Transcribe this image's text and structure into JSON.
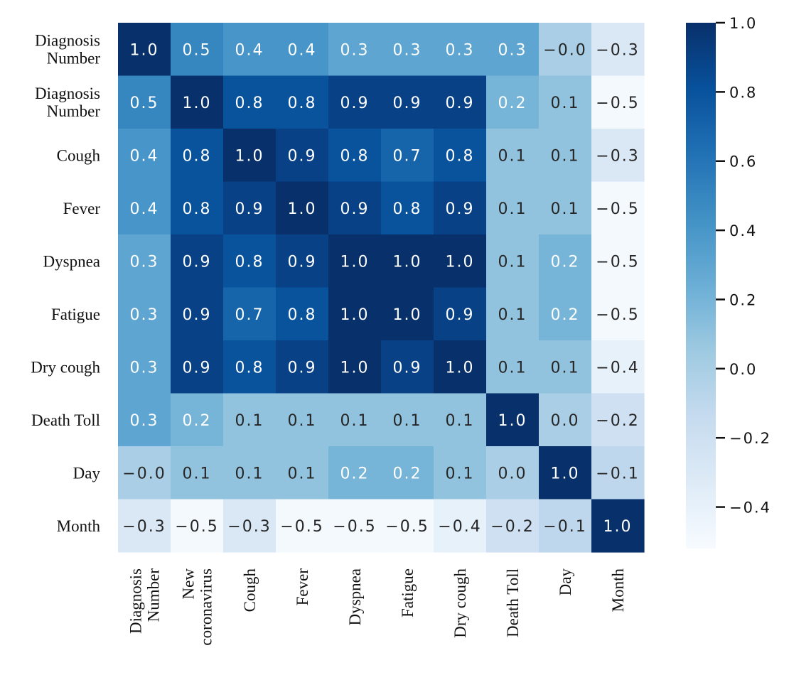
{
  "chart_data": {
    "type": "heatmap",
    "title": "",
    "row_labels": [
      [
        "Diagnosis",
        "Number"
      ],
      [
        "Diagnosis",
        "Number"
      ],
      [
        "Cough"
      ],
      [
        "Fever"
      ],
      [
        "Dyspnea"
      ],
      [
        "Fatigue"
      ],
      [
        "Dry cough"
      ],
      [
        "Death Toll"
      ],
      [
        "Day"
      ],
      [
        "Month"
      ]
    ],
    "col_labels": [
      [
        "Diagnosis",
        "Number"
      ],
      [
        "New",
        "coronavirus"
      ],
      [
        "Cough"
      ],
      [
        "Fever"
      ],
      [
        "Dyspnea"
      ],
      [
        "Fatigue"
      ],
      [
        "Dry cough"
      ],
      [
        "Death Toll"
      ],
      [
        "Day"
      ],
      [
        "Month"
      ]
    ],
    "values": [
      [
        1.0,
        0.5,
        0.4,
        0.4,
        0.3,
        0.3,
        0.3,
        0.3,
        -0.0,
        -0.3
      ],
      [
        0.5,
        1.0,
        0.8,
        0.8,
        0.9,
        0.9,
        0.9,
        0.2,
        0.1,
        -0.5
      ],
      [
        0.4,
        0.8,
        1.0,
        0.9,
        0.8,
        0.7,
        0.8,
        0.1,
        0.1,
        -0.3
      ],
      [
        0.4,
        0.8,
        0.9,
        1.0,
        0.9,
        0.8,
        0.9,
        0.1,
        0.1,
        -0.5
      ],
      [
        0.3,
        0.9,
        0.8,
        0.9,
        1.0,
        1.0,
        1.0,
        0.1,
        0.2,
        -0.5
      ],
      [
        0.3,
        0.9,
        0.7,
        0.8,
        1.0,
        1.0,
        0.9,
        0.1,
        0.2,
        -0.5
      ],
      [
        0.3,
        0.9,
        0.8,
        0.9,
        1.0,
        0.9,
        1.0,
        0.1,
        0.1,
        -0.4
      ],
      [
        0.3,
        0.2,
        0.1,
        0.1,
        0.1,
        0.1,
        0.1,
        1.0,
        0.0,
        -0.2
      ],
      [
        -0.0,
        0.1,
        0.1,
        0.1,
        0.2,
        0.2,
        0.1,
        0.0,
        1.0,
        -0.1
      ],
      [
        -0.3,
        -0.5,
        -0.3,
        -0.5,
        -0.5,
        -0.5,
        -0.4,
        -0.2,
        -0.1,
        1.0
      ]
    ],
    "display_values": [
      [
        "1.0",
        "0.5",
        "0.4",
        "0.4",
        "0.3",
        "0.3",
        "0.3",
        "0.3",
        "−0.0",
        "−0.3"
      ],
      [
        "0.5",
        "1.0",
        "0.8",
        "0.8",
        "0.9",
        "0.9",
        "0.9",
        "0.2",
        "0.1",
        "−0.5"
      ],
      [
        "0.4",
        "0.8",
        "1.0",
        "0.9",
        "0.8",
        "0.7",
        "0.8",
        "0.1",
        "0.1",
        "−0.3"
      ],
      [
        "0.4",
        "0.8",
        "0.9",
        "1.0",
        "0.9",
        "0.8",
        "0.9",
        "0.1",
        "0.1",
        "−0.5"
      ],
      [
        "0.3",
        "0.9",
        "0.8",
        "0.9",
        "1.0",
        "1.0",
        "1.0",
        "0.1",
        "0.2",
        "−0.5"
      ],
      [
        "0.3",
        "0.9",
        "0.7",
        "0.8",
        "1.0",
        "1.0",
        "0.9",
        "0.1",
        "0.2",
        "−0.5"
      ],
      [
        "0.3",
        "0.9",
        "0.8",
        "0.9",
        "1.0",
        "0.9",
        "1.0",
        "0.1",
        "0.1",
        "−0.4"
      ],
      [
        "0.3",
        "0.2",
        "0.1",
        "0.1",
        "0.1",
        "0.1",
        "0.1",
        "1.0",
        "0.0",
        "−0.2"
      ],
      [
        "−0.0",
        "0.1",
        "0.1",
        "0.1",
        "0.2",
        "0.2",
        "0.1",
        "0.0",
        "1.0",
        "−0.1"
      ],
      [
        "−0.3",
        "−0.5",
        "−0.3",
        "−0.5",
        "−0.5",
        "−0.5",
        "−0.4",
        "−0.2",
        "−0.1",
        "1.0"
      ]
    ],
    "colorbar": {
      "range": [
        -0.52,
        1.0
      ],
      "ticks": [
        1.0,
        0.8,
        0.6,
        0.4,
        0.2,
        0.0,
        -0.2,
        -0.4
      ],
      "tick_labels": [
        "1.0",
        "0.8",
        "0.6",
        "0.4",
        "0.2",
        "0.0",
        "−0.2",
        "−0.4"
      ]
    },
    "colormap": {
      "name": "Blues",
      "stops": [
        "#f7fbff",
        "#deebf7",
        "#c6dbef",
        "#9ecae1",
        "#6baed6",
        "#4292c6",
        "#2171b5",
        "#08519c",
        "#08306b"
      ]
    }
  }
}
